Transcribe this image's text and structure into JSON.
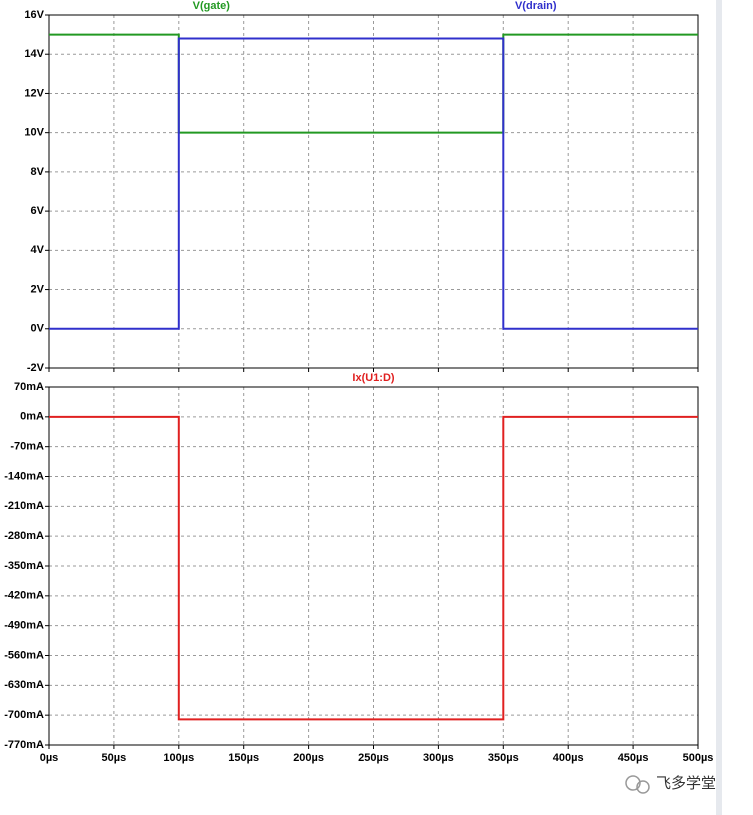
{
  "chart_data": [
    {
      "type": "line",
      "x": [
        0,
        100,
        100,
        350,
        350,
        500
      ],
      "series": [
        {
          "name": "V(gate)",
          "color": "#229922",
          "values": [
            15,
            15,
            10,
            10,
            15,
            15
          ]
        },
        {
          "name": "V(drain)",
          "color": "#3030cc",
          "values": [
            0,
            0,
            14.8,
            14.8,
            0,
            0
          ]
        }
      ],
      "ylim": [
        -2,
        16
      ],
      "yticks": [
        {
          "value": -2,
          "label": "-2V"
        },
        {
          "value": 0,
          "label": "0V"
        },
        {
          "value": 2,
          "label": "2V"
        },
        {
          "value": 4,
          "label": "4V"
        },
        {
          "value": 6,
          "label": "6V"
        },
        {
          "value": 8,
          "label": "8V"
        },
        {
          "value": 10,
          "label": "10V"
        },
        {
          "value": 12,
          "label": "12V"
        },
        {
          "value": 14,
          "label": "14V"
        },
        {
          "value": 16,
          "label": "16V"
        }
      ],
      "grid": true
    },
    {
      "type": "line",
      "x": [
        0,
        100,
        100,
        350,
        350,
        500
      ],
      "series": [
        {
          "name": "Ix(U1:D)",
          "color": "#e02020",
          "values": [
            0,
            0,
            -710,
            -710,
            0,
            0
          ]
        }
      ],
      "ylim": [
        -770,
        70
      ],
      "yticks": [
        {
          "value": -770,
          "label": "-770mA"
        },
        {
          "value": -700,
          "label": "-700mA"
        },
        {
          "value": -630,
          "label": "-630mA"
        },
        {
          "value": -560,
          "label": "-560mA"
        },
        {
          "value": -490,
          "label": "-490mA"
        },
        {
          "value": -420,
          "label": "-420mA"
        },
        {
          "value": -350,
          "label": "-350mA"
        },
        {
          "value": -280,
          "label": "-280mA"
        },
        {
          "value": -210,
          "label": "-210mA"
        },
        {
          "value": -140,
          "label": "-140mA"
        },
        {
          "value": -70,
          "label": "-70mA"
        },
        {
          "value": 0,
          "label": "0mA"
        },
        {
          "value": 70,
          "label": "70mA"
        }
      ],
      "xlim": [
        0,
        500
      ],
      "xticks": [
        {
          "value": 0,
          "label": "0µs"
        },
        {
          "value": 50,
          "label": "50µs"
        },
        {
          "value": 100,
          "label": "100µs"
        },
        {
          "value": 150,
          "label": "150µs"
        },
        {
          "value": 200,
          "label": "200µs"
        },
        {
          "value": 250,
          "label": "250µs"
        },
        {
          "value": 300,
          "label": "300µs"
        },
        {
          "value": 350,
          "label": "350µs"
        },
        {
          "value": 400,
          "label": "400µs"
        },
        {
          "value": 450,
          "label": "450µs"
        },
        {
          "value": 500,
          "label": "500µs"
        }
      ],
      "grid": true
    }
  ],
  "watermark": "飞多学堂"
}
